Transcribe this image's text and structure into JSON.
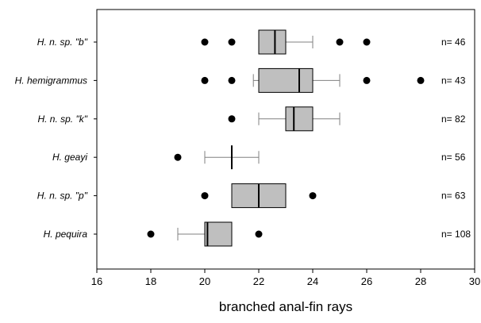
{
  "chart_data": {
    "type": "boxplot",
    "orientation": "horizontal",
    "xlabel": "branched anal-fin rays",
    "xlim": [
      16,
      30
    ],
    "xticks": [
      16,
      18,
      20,
      22,
      24,
      26,
      28,
      30
    ],
    "grid": false,
    "colors": {
      "box_fill": "#bfbfbf",
      "stroke": "#000000",
      "outlier": "#000000",
      "whisker": "#808080"
    },
    "series": [
      {
        "category": "H. n. sp. \"b\"",
        "n_label": "n= 46",
        "q1": 22,
        "median": 22.6,
        "q3": 23,
        "whisker_low": 22,
        "whisker_high": 24,
        "outliers": [
          20,
          21,
          25,
          26
        ]
      },
      {
        "category": "H. hemigrammus",
        "n_label": "n= 43",
        "q1": 22,
        "median": 23.5,
        "q3": 24,
        "whisker_low": 21.8,
        "whisker_high": 25,
        "outliers": [
          20,
          21,
          26,
          28
        ]
      },
      {
        "category": "H. n. sp. \"k\"",
        "n_label": "n= 82",
        "q1": 23,
        "median": 23.3,
        "q3": 24,
        "whisker_low": 22,
        "whisker_high": 25,
        "outliers": [
          21
        ]
      },
      {
        "category": "H. geayi",
        "n_label": "n= 56",
        "q1": 21,
        "median": 21,
        "q3": 21,
        "whisker_low": 20,
        "whisker_high": 22,
        "outliers": [
          19
        ]
      },
      {
        "category": "H. n. sp. \"p\"",
        "n_label": "n= 63",
        "q1": 21,
        "median": 22,
        "q3": 23,
        "whisker_low": 21,
        "whisker_high": 23,
        "outliers": [
          20,
          24
        ]
      },
      {
        "category": "H. pequira",
        "n_label": "n= 108",
        "q1": 20,
        "median": 20.1,
        "q3": 21,
        "whisker_low": 19,
        "whisker_high": 21,
        "outliers": [
          18,
          22
        ]
      }
    ]
  }
}
